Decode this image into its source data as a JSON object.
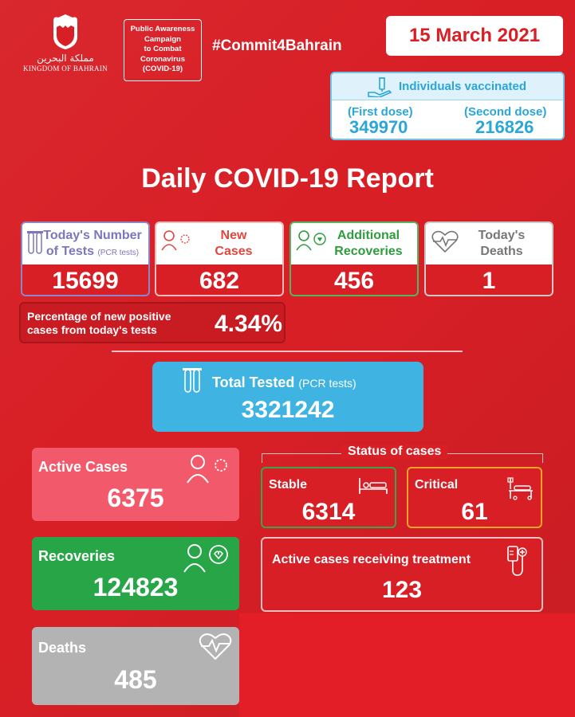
{
  "header": {
    "kingdom_ar": "مملكة البحرين",
    "kingdom_en": "KINGDOM OF BAHRAIN",
    "campaign_lines": [
      "Public Awareness",
      "Campaign",
      "to Combat",
      "Coronavirus",
      "(COVID-19)"
    ],
    "hashtag": "#Commit4Bahrain",
    "date": "15 March 2021"
  },
  "vaccination": {
    "title": "Individuals vaccinated",
    "first_dose_label": "(First dose)",
    "first_dose_value": "349970",
    "second_dose_label": "(Second dose)",
    "second_dose_value": "216826"
  },
  "report_title": "Daily COVID-19 Report",
  "daily": {
    "tests_label_1": "Today's Number",
    "tests_label_2": "of Tests",
    "tests_label_note": "(PCR tests)",
    "tests_value": "15699",
    "new_label_1": "New",
    "new_label_2": "Cases",
    "new_value": "682",
    "recoveries_label_1": "Additional",
    "recoveries_label_2": "Recoveries",
    "recoveries_value": "456",
    "deaths_label_1": "Today's",
    "deaths_label_2": "Deaths",
    "deaths_value": "1"
  },
  "percentage": {
    "label_1": "Percentage of new positive",
    "label_2": "cases from today's tests",
    "value": "4.34%"
  },
  "total_tested": {
    "label": "Total Tested",
    "note": "(PCR tests)",
    "value": "3321242"
  },
  "totals": {
    "active_label": "Active Cases",
    "active_value": "6375",
    "recoveries_label": "Recoveries",
    "recoveries_value": "124823",
    "deaths_label": "Deaths",
    "deaths_value": "485"
  },
  "status": {
    "title": "Status of cases",
    "stable_label": "Stable",
    "stable_value": "6314",
    "critical_label": "Critical",
    "critical_value": "61",
    "treatment_label": "Active cases receiving treatment",
    "treatment_value": "123"
  },
  "colors": {
    "background": "#d81f26",
    "vaccine_blue": "#2aa6d9",
    "total_blue": "#3fb4e3",
    "active_pink": "#f2596b",
    "recovery_green": "#27a547",
    "deaths_gray": "#b3b3b3",
    "critical_orange": "#f0a12b"
  }
}
